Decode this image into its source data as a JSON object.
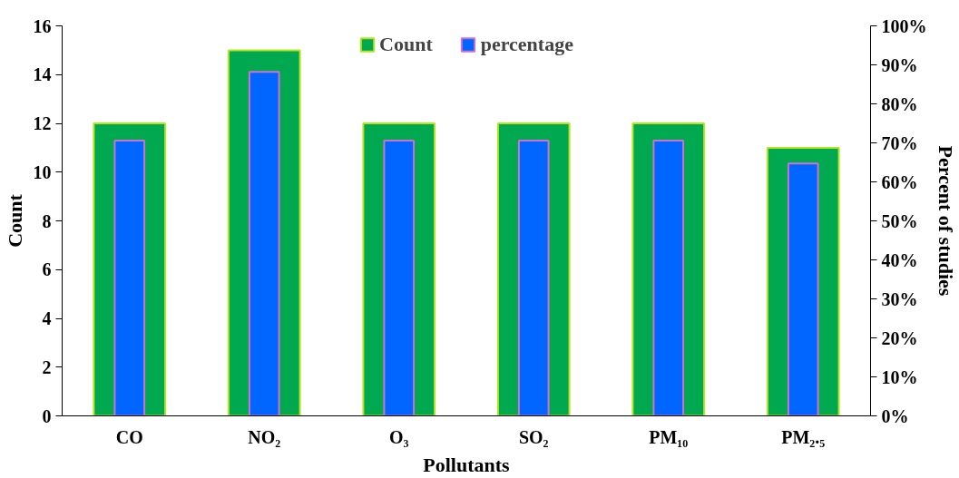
{
  "chart_data": {
    "type": "bar",
    "xlabel": "Pollutants",
    "ylabel": "Count",
    "y2label": "Percent of studies",
    "categories": [
      "CO",
      "NO₂",
      "O₃",
      "SO₂",
      "PM₁₀",
      "PM₂.₅"
    ],
    "series": [
      {
        "name": "Count",
        "color": "#00a84f",
        "values": [
          12,
          15,
          12,
          12,
          12,
          11
        ]
      },
      {
        "name": "percentage",
        "color": "#0066ff",
        "axis": "y2",
        "values": [
          70.6,
          88.2,
          70.6,
          70.6,
          70.6,
          64.7
        ]
      }
    ],
    "ylim": [
      0,
      16
    ],
    "yticks": [
      0,
      2,
      4,
      6,
      8,
      10,
      12,
      14,
      16
    ],
    "y2lim": [
      0,
      100
    ],
    "y2ticks": [
      {
        "value": 0,
        "label": "0%"
      },
      {
        "value": 10,
        "label": "10%"
      },
      {
        "value": 20,
        "label": "20%"
      },
      {
        "value": 30,
        "label": "30%"
      },
      {
        "value": 40,
        "label": "40%"
      },
      {
        "value": 50,
        "label": "50%"
      },
      {
        "value": 60,
        "label": "60%"
      },
      {
        "value": 70,
        "label": "70%"
      },
      {
        "value": 80,
        "label": "80%"
      },
      {
        "value": 90,
        "label": "90%"
      },
      {
        "value": 100,
        "label": "100%"
      }
    ],
    "legend": "top",
    "grid": false
  }
}
